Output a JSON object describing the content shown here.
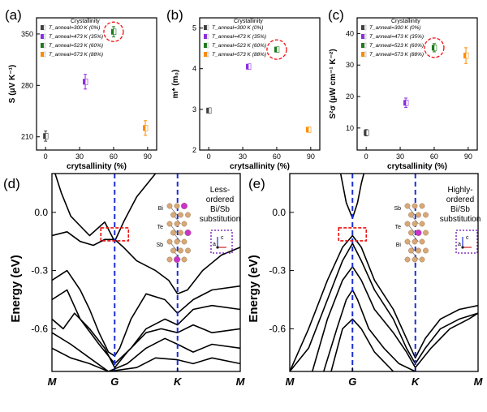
{
  "chart_data": [
    {
      "panel": "(a)",
      "type": "scatter",
      "xlabel": "crytsallinity (%)",
      "ylabel": "S (μV K⁻¹)",
      "xlim": [
        -8,
        98
      ],
      "ylim": [
        192,
        372
      ],
      "xticks": [
        0,
        30,
        60,
        90
      ],
      "yticks": [
        210,
        280,
        350
      ],
      "legend_title": "Crystallinity",
      "series": [
        {
          "name": "T_anneal=300 K (0%)",
          "color": "#404040",
          "x": 0,
          "y": 211,
          "err": 7
        },
        {
          "name": "T_anneal=473 K (35%)",
          "color": "#8a2be2",
          "x": 35,
          "y": 285,
          "err": 10
        },
        {
          "name": "T_anneal=523 K (60%)",
          "color": "#1e7a1e",
          "x": 60,
          "y": 353,
          "err": 7
        },
        {
          "name": "T_anneal=573 K (88%)",
          "color": "#ff8c00",
          "x": 88,
          "y": 222,
          "err": 10
        }
      ],
      "highlight": {
        "x": 60,
        "y": 353
      }
    },
    {
      "panel": "(b)",
      "type": "scatter",
      "xlabel": "crytsallinity (%)",
      "ylabel": "m* (m₀)",
      "xlim": [
        -8,
        98
      ],
      "ylim": [
        2,
        5.25
      ],
      "xticks": [
        0,
        30,
        60,
        90
      ],
      "yticks": [
        2,
        3,
        4,
        5
      ],
      "legend_title": "Crystallinity",
      "series": [
        {
          "name": "T_anneal=300 K (0%)",
          "color": "#404040",
          "x": 0,
          "y": 2.97,
          "err": 0.05
        },
        {
          "name": "T_anneal=473 K (35%)",
          "color": "#8a2be2",
          "x": 35,
          "y": 4.05,
          "err": 0.05
        },
        {
          "name": "T_anneal=523 K (60%)",
          "color": "#1e7a1e",
          "x": 60,
          "y": 4.47,
          "err": 0.06
        },
        {
          "name": "T_anneal=573 K (88%)",
          "color": "#ff8c00",
          "x": 88,
          "y": 2.5,
          "err": 0.05
        }
      ],
      "highlight": {
        "x": 60,
        "y": 4.47
      }
    },
    {
      "panel": "(c)",
      "type": "scatter",
      "xlabel": "crytsallinity (%)",
      "ylabel": "S²σ (μW cm⁻¹ K⁻²)",
      "xlim": [
        -8,
        98
      ],
      "ylim": [
        3,
        45
      ],
      "xticks": [
        0,
        30,
        60,
        90
      ],
      "yticks": [
        10,
        20,
        30,
        40
      ],
      "legend_title": "Crystallinity",
      "series": [
        {
          "name": "T_anneal=300 K (0%)",
          "color": "#404040",
          "x": 0,
          "y": 8.5,
          "err": 1
        },
        {
          "name": "T_anneal=473 K (35%)",
          "color": "#8a2be2",
          "x": 35,
          "y": 18,
          "err": 1.5
        },
        {
          "name": "T_anneal=523 K (60%)",
          "color": "#1e7a1e",
          "x": 60,
          "y": 35.5,
          "err": 1.3
        },
        {
          "name": "T_anneal=573 K (88%)",
          "color": "#ff8c00",
          "x": 88,
          "y": 33,
          "err": 2.5
        }
      ],
      "highlight": {
        "x": 60,
        "y": 35.5
      }
    },
    {
      "panel": "(d)",
      "type": "line",
      "ylabel": "Energy (eV)",
      "ylim": [
        -0.82,
        0.2
      ],
      "yticks": [
        0.0,
        -0.3,
        -0.6
      ],
      "ytick_labels": [
        "0.0",
        "-0.3",
        "-0.6"
      ],
      "kpoints": [
        "M",
        "G",
        "K",
        "M"
      ],
      "kpos": [
        0,
        0.333,
        0.667,
        1
      ],
      "note": [
        "Less-",
        "ordered",
        "Bi/Sb",
        "substitution"
      ],
      "atoms": [
        "Bi",
        "Te",
        "Sb"
      ],
      "axes_labels": [
        "c",
        "a"
      ],
      "series": [
        {
          "x": [
            0,
            0.05,
            0.1,
            0.2,
            0.28,
            0.333,
            0.38,
            0.45,
            0.55,
            0.62,
            0.667
          ],
          "y": [
            0.25,
            0.1,
            -0.02,
            -0.12,
            -0.05,
            -0.15,
            -0.05,
            0.08,
            0.2,
            0.25,
            0.3
          ]
        },
        {
          "x": [
            0,
            0.08,
            0.15,
            0.22,
            0.28,
            0.333,
            0.38,
            0.45,
            0.55,
            0.62,
            0.667,
            0.72,
            0.8,
            0.9,
            1
          ],
          "y": [
            -0.12,
            -0.1,
            -0.15,
            -0.17,
            -0.14,
            -0.14,
            -0.18,
            -0.25,
            -0.3,
            -0.35,
            -0.42,
            -0.4,
            -0.3,
            -0.22,
            -0.18
          ]
        },
        {
          "x": [
            0,
            0.08,
            0.15,
            0.2,
            0.25,
            0.3,
            0.333,
            0.36,
            0.42,
            0.5,
            0.6,
            0.667,
            0.75,
            0.85,
            1
          ],
          "y": [
            -0.35,
            -0.3,
            -0.4,
            -0.5,
            -0.62,
            -0.72,
            -0.74,
            -0.7,
            -0.55,
            -0.42,
            -0.45,
            -0.52,
            -0.45,
            -0.4,
            -0.38
          ]
        },
        {
          "x": [
            0,
            0.08,
            0.15,
            0.25,
            0.333,
            0.42,
            0.5,
            0.6,
            0.667,
            0.75,
            0.85,
            1
          ],
          "y": [
            -0.45,
            -0.4,
            -0.55,
            -0.68,
            -0.78,
            -0.7,
            -0.6,
            -0.55,
            -0.58,
            -0.5,
            -0.48,
            -0.5
          ]
        },
        {
          "x": [
            0,
            0.06,
            0.12,
            0.2,
            0.28,
            0.333,
            0.4,
            0.5,
            0.58,
            0.667,
            0.75,
            0.85,
            1
          ],
          "y": [
            -0.55,
            -0.6,
            -0.52,
            -0.6,
            -0.7,
            -0.8,
            -0.72,
            -0.62,
            -0.6,
            -0.62,
            -0.58,
            -0.62,
            -0.6
          ]
        },
        {
          "x": [
            0,
            0.1,
            0.2,
            0.3,
            0.4,
            0.5,
            0.6,
            0.667,
            0.75,
            0.85,
            1
          ],
          "y": [
            -0.62,
            -0.68,
            -0.75,
            -0.82,
            -0.78,
            -0.7,
            -0.65,
            -0.68,
            -0.72,
            -0.68,
            -0.7
          ]
        },
        {
          "x": [
            0,
            0.1,
            0.2,
            0.3,
            0.45,
            0.55,
            0.667,
            0.75,
            0.85,
            1
          ],
          "y": [
            -0.7,
            -0.75,
            -0.78,
            -0.82,
            -0.8,
            -0.75,
            -0.76,
            -0.78,
            -0.75,
            -0.78
          ]
        }
      ]
    },
    {
      "panel": "(e)",
      "type": "line",
      "ylabel": "Energy (eV)",
      "ylim": [
        -0.82,
        0.2
      ],
      "yticks": [
        0.0,
        -0.3,
        -0.6
      ],
      "ytick_labels": [
        "0.0",
        "-0.3",
        "-0.6"
      ],
      "kpoints": [
        "M",
        "G",
        "K",
        "M"
      ],
      "kpos": [
        0,
        0.333,
        0.667,
        1
      ],
      "note": [
        "Highly-",
        "ordered",
        "Bi/Sb",
        "substitution"
      ],
      "atoms": [
        "Sb",
        "Te",
        "Bi"
      ],
      "axes_labels": [
        "c",
        "a"
      ],
      "series": [
        {
          "x": [
            0.25,
            0.28,
            0.3,
            0.333,
            0.36,
            0.38,
            0.42
          ],
          "y": [
            0.3,
            0.15,
            0.05,
            -0.03,
            0.05,
            0.15,
            0.3
          ]
        },
        {
          "x": [
            0,
            0.1,
            0.2,
            0.28,
            0.333,
            0.38,
            0.45,
            0.55,
            0.62,
            0.667,
            0.72,
            0.8,
            0.9,
            1
          ],
          "y": [
            -0.82,
            -0.6,
            -0.35,
            -0.18,
            -0.12,
            -0.18,
            -0.35,
            -0.5,
            -0.65,
            -0.75,
            -0.65,
            -0.55,
            -0.5,
            -0.48
          ]
        },
        {
          "x": [
            0,
            0.1,
            0.2,
            0.28,
            0.333,
            0.38,
            0.45,
            0.55,
            0.62,
            0.667,
            0.72,
            0.8,
            0.9,
            1
          ],
          "y": [
            -0.82,
            -0.7,
            -0.45,
            -0.25,
            -0.16,
            -0.25,
            -0.4,
            -0.55,
            -0.7,
            -0.78,
            -0.7,
            -0.6,
            -0.55,
            -0.52
          ]
        },
        {
          "x": [
            0.12,
            0.2,
            0.28,
            0.333,
            0.38,
            0.45,
            0.55,
            0.62,
            0.667
          ],
          "y": [
            -0.82,
            -0.55,
            -0.35,
            -0.28,
            -0.35,
            -0.5,
            -0.62,
            -0.72,
            -0.8
          ]
        },
        {
          "x": [
            0.18,
            0.25,
            0.3,
            0.333,
            0.36,
            0.42,
            0.5,
            0.58,
            0.667
          ],
          "y": [
            -0.82,
            -0.6,
            -0.45,
            -0.4,
            -0.45,
            -0.6,
            -0.7,
            -0.78,
            -0.82
          ]
        },
        {
          "x": [
            0.22,
            0.28,
            0.333,
            0.38,
            0.45,
            0.55
          ],
          "y": [
            -0.82,
            -0.6,
            -0.55,
            -0.6,
            -0.72,
            -0.82
          ]
        },
        {
          "x": [
            0.667,
            0.75,
            0.85,
            0.95,
            1
          ],
          "y": [
            -0.8,
            -0.7,
            -0.6,
            -0.55,
            -0.52
          ]
        }
      ]
    }
  ],
  "highlight_colors": {
    "circle": "#ee1111",
    "box": "#ee1111",
    "dashed_line": "#1a2fd8",
    "inset_box": "#6a0dad"
  }
}
